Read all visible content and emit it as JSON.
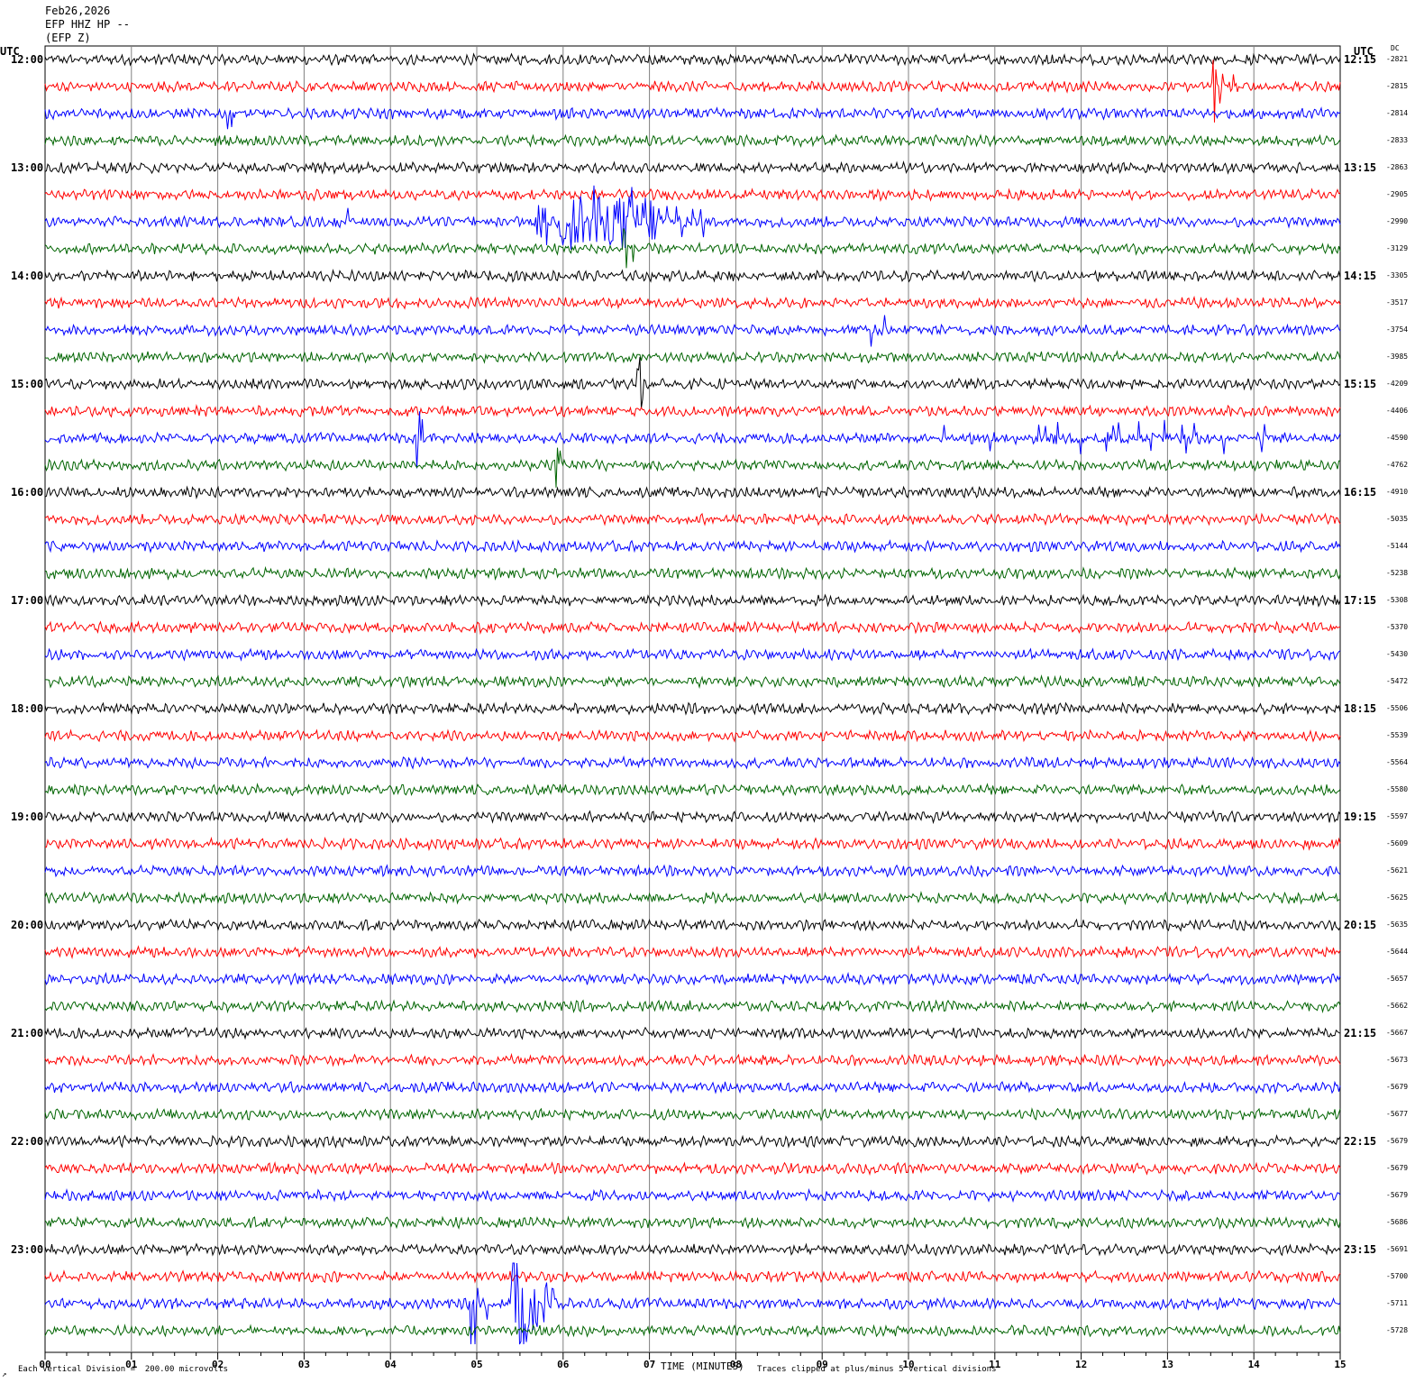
{
  "header": {
    "date": "Feb26,2026",
    "station": "EFP HHZ HP --",
    "network": "(EFP Z)"
  },
  "left_axis_title": "UTC",
  "right_axis_title": "UTC",
  "dc_title": "DC",
  "footer": {
    "scale_note": "Each Vertical Division =  200.00 microvolts",
    "clip_note": "Traces clipped at plus/minus 5 vertical divisions",
    "corner_mark": "↗"
  },
  "colors": {
    "trace_cycle": [
      "#000000",
      "#ff0000",
      "#0000ff",
      "#006400"
    ],
    "grid": "#808080"
  },
  "chart_data": {
    "type": "line",
    "title": "",
    "xlabel": "TIME (MINUTES)",
    "ylabel": "",
    "xlim": [
      0,
      15
    ],
    "x_ticks": [
      "00",
      "01",
      "02",
      "03",
      "04",
      "05",
      "06",
      "07",
      "08",
      "09",
      "10",
      "11",
      "12",
      "13",
      "14",
      "15"
    ],
    "grid": true,
    "trace_count": 48,
    "minutes_per_trace": 15,
    "left_hour_labels": [
      "12:00",
      "13:00",
      "14:00",
      "15:00",
      "16:00",
      "17:00",
      "18:00",
      "19:00",
      "20:00",
      "21:00",
      "22:00",
      "23:00"
    ],
    "right_hour_labels": [
      "12:15",
      "13:15",
      "14:15",
      "15:15",
      "16:15",
      "17:15",
      "18:15",
      "19:15",
      "20:15",
      "21:15",
      "22:15",
      "23:15"
    ],
    "dc_offsets": [
      -2821,
      -2815,
      -2814,
      -2833,
      -2863,
      -2905,
      -2990,
      -3129,
      -3305,
      -3517,
      -3754,
      -3985,
      -4209,
      -4406,
      -4590,
      -4762,
      -4910,
      -5035,
      -5144,
      -5238,
      -5308,
      -5370,
      -5430,
      -5472,
      -5506,
      -5539,
      -5564,
      -5580,
      -5597,
      -5609,
      -5621,
      -5625,
      -5635,
      -5644,
      -5657,
      -5662,
      -5667,
      -5673,
      -5679,
      -5677,
      -5679,
      -5679,
      -5679,
      -5686,
      -5691,
      -5700,
      -5711,
      -5728
    ],
    "events": [
      {
        "trace": 1,
        "minute": 13.5,
        "amp": 5,
        "dur": 0.35
      },
      {
        "trace": 2,
        "minute": 2.1,
        "amp": 3,
        "dur": 0.15
      },
      {
        "trace": 6,
        "minute": 3.3,
        "amp": 0.8,
        "dur": 1.0
      },
      {
        "trace": 6,
        "minute": 5.2,
        "amp": 1.8,
        "dur": 2.6
      },
      {
        "trace": 7,
        "minute": 6.65,
        "amp": 4,
        "dur": 0.25
      },
      {
        "trace": 10,
        "minute": 9.55,
        "amp": 3,
        "dur": 0.35
      },
      {
        "trace": 12,
        "minute": 6.85,
        "amp": 4.5,
        "dur": 0.15
      },
      {
        "trace": 14,
        "minute": 4.3,
        "amp": 3.5,
        "dur": 0.25
      },
      {
        "trace": 14,
        "minute": 9.7,
        "amp": 0.6,
        "dur": 5.3
      },
      {
        "trace": 15,
        "minute": 5.9,
        "amp": 2.5,
        "dur": 0.3
      },
      {
        "trace": 46,
        "minute": 4.93,
        "amp": 5,
        "dur": 0.35
      },
      {
        "trace": 46,
        "minute": 5.4,
        "amp": 5,
        "dur": 1.1
      }
    ]
  }
}
